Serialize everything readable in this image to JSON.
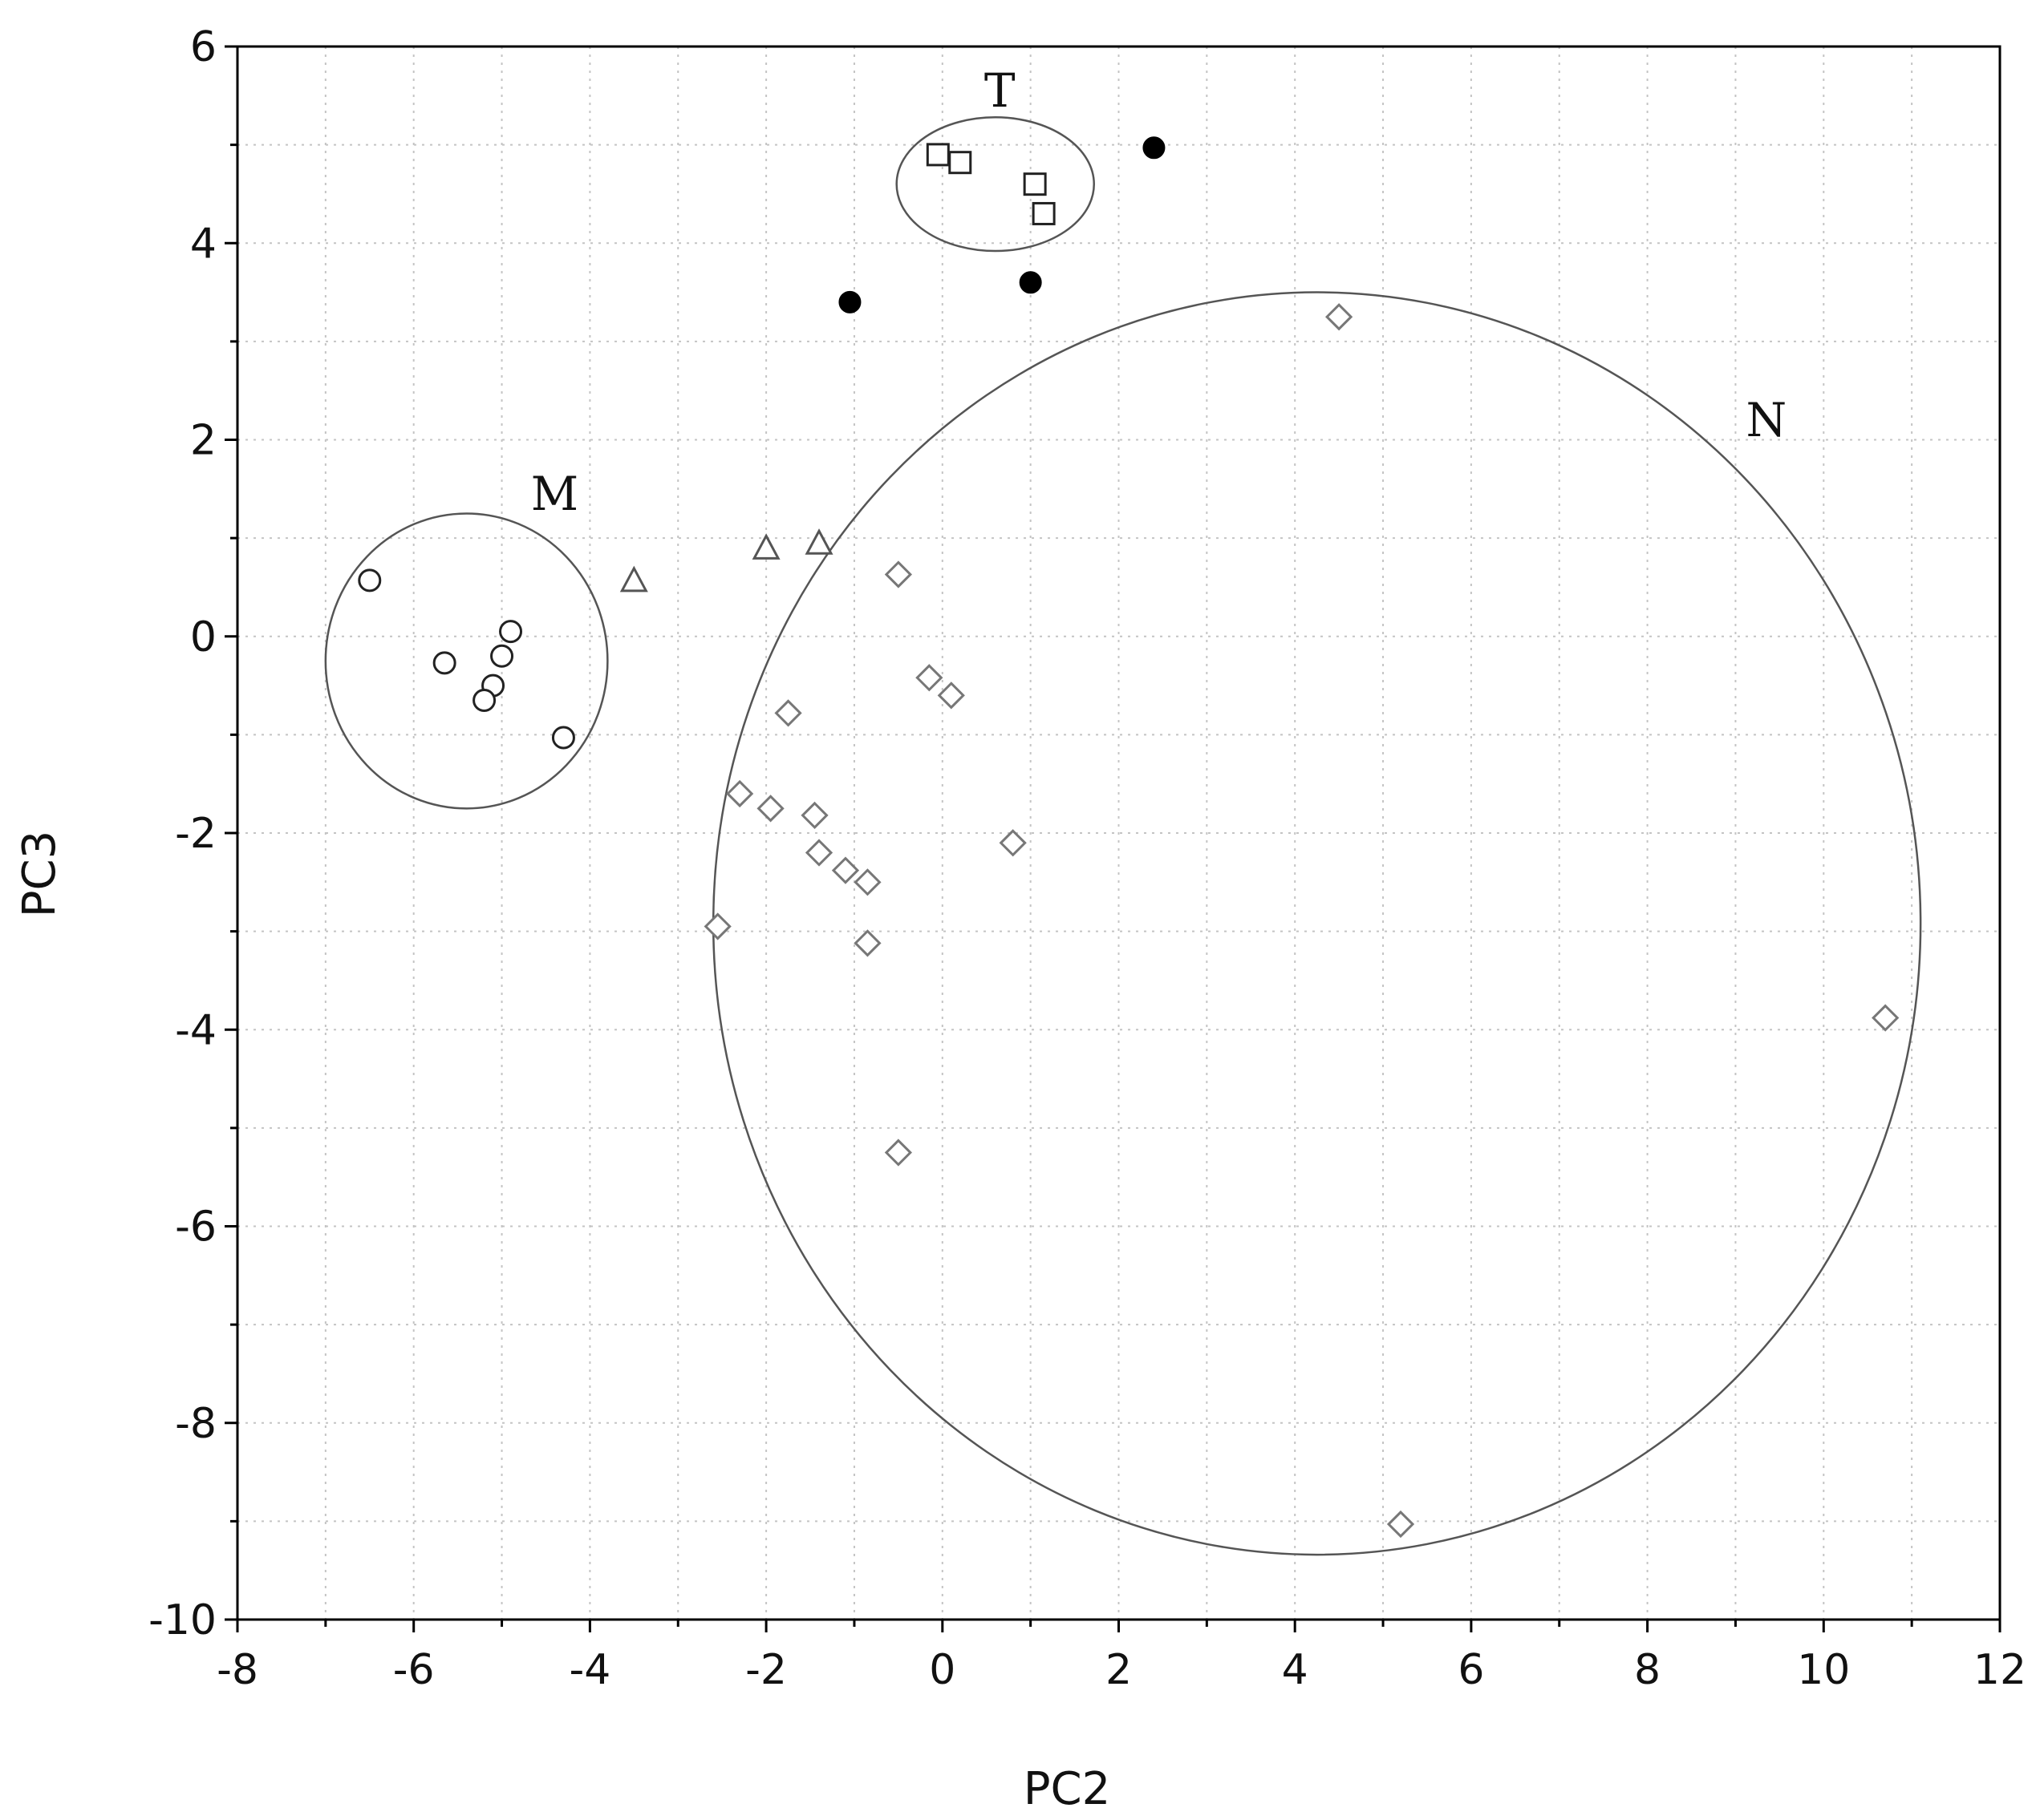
{
  "chart_data": {
    "type": "scatter",
    "title": "",
    "xlabel": "PC2",
    "ylabel": "PC3",
    "xlim": [
      -8,
      12
    ],
    "ylim": [
      -10,
      6
    ],
    "xticks": [
      -8,
      -6,
      -4,
      -2,
      0,
      2,
      4,
      6,
      8,
      10,
      12
    ],
    "yticks": [
      -10,
      -8,
      -6,
      -4,
      -2,
      0,
      2,
      4,
      6
    ],
    "xtick_labels": [
      "-8",
      "-6",
      "-4",
      "-2",
      "0",
      "2",
      "4",
      "6",
      "8",
      "10",
      "12"
    ],
    "ytick_labels": [
      "-10",
      "-8",
      "-6",
      "-4",
      "-2",
      "0",
      "2",
      "4",
      "6"
    ],
    "grid": true,
    "series": [
      {
        "marker": "square",
        "points": [
          [
            -0.05,
            4.9
          ],
          [
            0.2,
            4.82
          ],
          [
            1.05,
            4.6
          ],
          [
            1.15,
            4.3
          ]
        ]
      },
      {
        "marker": "filled-circle",
        "points": [
          [
            2.4,
            4.97
          ],
          [
            1.0,
            3.6
          ],
          [
            -1.05,
            3.4
          ]
        ]
      },
      {
        "marker": "circle",
        "points": [
          [
            -6.5,
            0.57
          ],
          [
            -5.65,
            -0.27
          ],
          [
            -4.9,
            0.05
          ],
          [
            -5.0,
            -0.2
          ],
          [
            -5.1,
            -0.5
          ],
          [
            -5.2,
            -0.65
          ],
          [
            -4.3,
            -1.03
          ]
        ]
      },
      {
        "marker": "triangle",
        "points": [
          [
            -3.5,
            0.57
          ],
          [
            -2.0,
            0.9
          ],
          [
            -1.4,
            0.95
          ]
        ]
      },
      {
        "marker": "diamond",
        "points": [
          [
            4.5,
            3.25
          ],
          [
            -0.5,
            0.63
          ],
          [
            -0.15,
            -0.42
          ],
          [
            0.1,
            -0.6
          ],
          [
            -1.75,
            -0.78
          ],
          [
            -2.3,
            -1.6
          ],
          [
            -1.95,
            -1.75
          ],
          [
            -1.45,
            -1.82
          ],
          [
            -1.4,
            -2.2
          ],
          [
            -1.1,
            -2.38
          ],
          [
            -0.85,
            -2.5
          ],
          [
            0.8,
            -2.1
          ],
          [
            -2.55,
            -2.95
          ],
          [
            -0.85,
            -3.12
          ],
          [
            10.7,
            -3.88
          ],
          [
            -0.5,
            -5.25
          ],
          [
            5.2,
            -9.03
          ]
        ]
      }
    ],
    "groups": [
      {
        "label": "T",
        "center": [
          0.6,
          4.6
        ],
        "rx": 1.12,
        "ry": 0.68,
        "label_at": [
          0.65,
          5.55
        ]
      },
      {
        "label": "M",
        "center": [
          -5.4,
          -0.25
        ],
        "rx": 1.6,
        "ry": 1.5,
        "label_at": [
          -4.4,
          1.45
        ]
      },
      {
        "label": "N",
        "center": [
          4.25,
          -2.92
        ],
        "rx": 6.85,
        "ry": 6.42,
        "label_at": [
          9.35,
          2.2
        ]
      }
    ]
  }
}
